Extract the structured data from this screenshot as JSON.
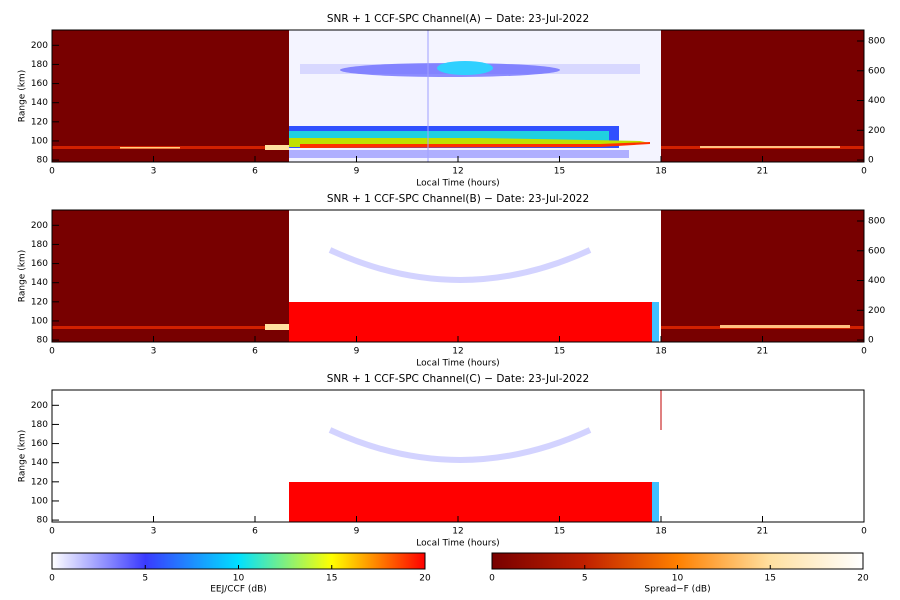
{
  "chart_data": [
    {
      "type": "heatmap",
      "title": "SNR + 1 CCF-SPC Channel(A) − Date: 23-Jul-2022",
      "x_label": "Local Time (hours)",
      "y_label": "Range (km)",
      "xlim": [
        0,
        24
      ],
      "xticks": [
        0,
        3,
        6,
        9,
        12,
        15,
        18,
        21,
        {
          "value": 24,
          "label": "0"
        }
      ],
      "ylim": [
        78,
        216
      ],
      "yticks": [
        80,
        100,
        120,
        140,
        160,
        180,
        200
      ],
      "y2lim": [
        -13,
        874
      ],
      "y2ticks": [
        0,
        200,
        400,
        600,
        800
      ]
    },
    {
      "type": "heatmap",
      "title": "SNR + 1 CCF-SPC Channel(B) − Date: 23-Jul-2022",
      "x_label": "Local Time (hours)",
      "y_label": "Range (km)",
      "xlim": [
        0,
        24
      ],
      "xticks": [
        0,
        3,
        6,
        9,
        12,
        15,
        18,
        21,
        {
          "value": 24,
          "label": "0"
        }
      ],
      "ylim": [
        78,
        216
      ],
      "yticks": [
        80,
        100,
        120,
        140,
        160,
        180,
        200
      ],
      "y2lim": [
        -13,
        874
      ],
      "y2ticks": [
        0,
        200,
        400,
        600,
        800
      ]
    },
    {
      "type": "heatmap",
      "title": "SNR + 1 CCF-SPC Channel(C) − Date: 23-Jul-2022",
      "x_label": "Local Time (hours)",
      "y_label": "Range (km)",
      "xlim": [
        0,
        24
      ],
      "xticks": [
        0,
        3,
        6,
        9,
        12,
        15,
        18,
        21,
        {
          "value": 24,
          "label": "0"
        }
      ],
      "ylim": [
        78,
        216
      ],
      "yticks": [
        80,
        100,
        120,
        140,
        160,
        180,
        200
      ]
    },
    {
      "type": "colorbar",
      "label": "EEJ/CCF (dB)",
      "lim": [
        0,
        20
      ],
      "ticks": [
        0,
        5,
        10,
        15,
        20
      ],
      "colors": [
        "#ffffff",
        "#3a3aff",
        "#00e0ff",
        "#ffff00",
        "#ff0000"
      ]
    },
    {
      "type": "colorbar",
      "label": "Spread−F (dB)",
      "lim": [
        0,
        20
      ],
      "ticks": [
        0,
        5,
        10,
        15,
        20
      ],
      "colors": [
        "#780000",
        "#c02000",
        "#ff8000",
        "#ffe0a0",
        "#ffffff"
      ]
    }
  ]
}
